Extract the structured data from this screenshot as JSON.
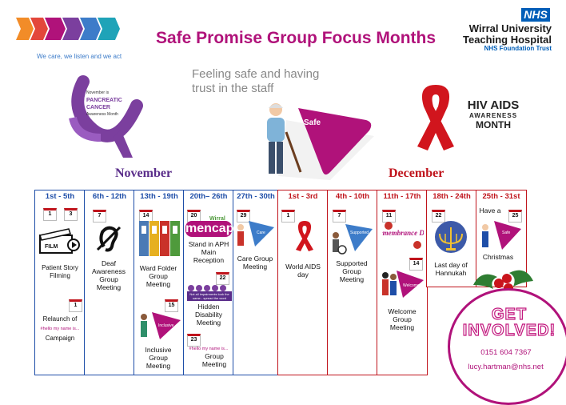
{
  "title": "Safe Promise Group Focus Months",
  "nhs": {
    "badge": "NHS",
    "org_line1": "Wirral University",
    "org_line2": "Teaching Hospital",
    "org_line3": "NHS Foundation Trust"
  },
  "tagline": "We care, we listen and we act",
  "safe_caption_line1": "Feeling safe and having",
  "safe_caption_line2": "trust in the staff",
  "safe_label": "Safe",
  "pancreatic": {
    "line1": "November is",
    "line2": "PANCREATIC",
    "line3": "CANCER",
    "line4": "Awareness Month"
  },
  "hiv": {
    "line1": "HIV AIDS",
    "line2": "AWARENESS",
    "line3": "MONTH"
  },
  "months": {
    "november": "November",
    "december": "December"
  },
  "weeks": [
    {
      "range": "1st - 5th",
      "month": "nov"
    },
    {
      "range": "6th - 12th",
      "month": "nov"
    },
    {
      "range": "13th - 19th",
      "month": "nov"
    },
    {
      "range": "20th– 26th",
      "month": "nov"
    },
    {
      "range": "27th - 30th",
      "month": "nov"
    },
    {
      "range": "1st - 3rd",
      "month": "dec"
    },
    {
      "range": "4th - 10th",
      "month": "dec"
    },
    {
      "range": "11th - 17th",
      "month": "dec"
    },
    {
      "range": "18th - 24th",
      "month": "dec"
    },
    {
      "range": "25th - 31st",
      "month": "dec"
    }
  ],
  "events": {
    "d1": "1",
    "d3": "3",
    "d1b": "1",
    "d7": "7",
    "d14": "14",
    "d15": "15",
    "d20": "20",
    "d22": "22",
    "d23": "23",
    "d29": "29",
    "dec1": "1",
    "dec7": "7",
    "dec11": "11",
    "dec14": "14",
    "dec22": "22",
    "dec25": "25",
    "patient_story": "Patient Story Filming",
    "relaunch": "Relaunch of",
    "campaign": "Campaign",
    "hello_tag": "#hello my name is...",
    "film": "FILM",
    "deaf": "Deaf Awareness Group Meeting",
    "ward_folder": "Ward Folder Group Meeting",
    "inclusive": "Inclusive Group Meeting",
    "inclusive_badge": "Inclusive",
    "mencap": "mencap",
    "mencap_wirral": "Wirral",
    "mencap_stand": "Stand in APH Main Reception",
    "hidden_banner": "Not all impairments look the same - spread the word",
    "hidden": "Hidden Disability Meeting",
    "group_meeting": "Group Meeting",
    "care": "Care Group Meeting",
    "care_badge": "Care",
    "world_aids": "World AIDS day",
    "supported": "Supported Group Meeting",
    "supported_badge": "Supported",
    "remembrance": "Remembrance Day",
    "welcome": "Welcome Group Meeting",
    "welcome_badge": "Welcome",
    "hannukah": "Last day of Hannukah",
    "have_a": "Have a",
    "christmas": "Christmas",
    "xmas_badge": "Safe"
  },
  "get_involved": "GET INVOLVED!",
  "phone": "0151 604 7367",
  "email": "lucy.hartman@nhs.net",
  "colors": {
    "purple": "#b0127a",
    "nhs_blue": "#005eb8",
    "nov_blue": "#1e4ea8",
    "dec_red": "#c0141c",
    "ribbon_purple": "#7b3f9e"
  }
}
